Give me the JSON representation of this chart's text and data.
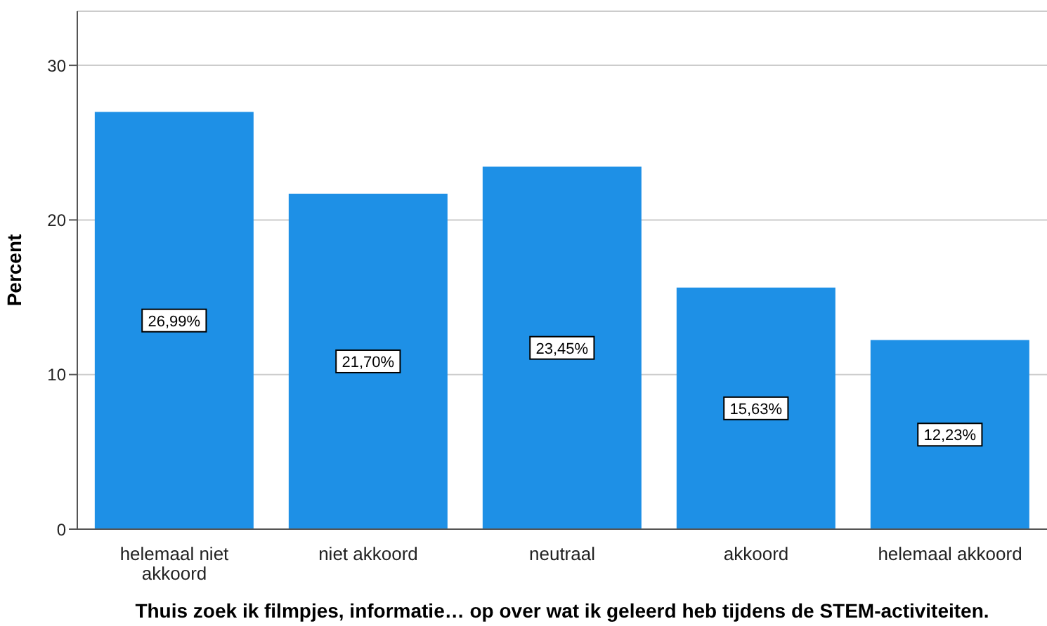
{
  "chart_data": {
    "type": "bar",
    "xlabel": "Thuis zoek ik filmpjes, informatie…  op over wat ik geleerd heb tijdens de STEM-activiteiten.",
    "ylabel": "Percent",
    "categories": [
      "helemaal niet akkoord",
      "niet akkoord",
      "neutraal",
      "akkoord",
      "helemaal akkoord"
    ],
    "values": [
      26.99,
      21.7,
      23.45,
      15.63,
      12.23
    ],
    "value_labels": [
      "26,99%",
      "21,70%",
      "23,45%",
      "15,63%",
      "12,23%"
    ],
    "color": "#1e90e6",
    "ylim": [
      0,
      33.5
    ],
    "yticks": [
      0,
      10,
      20,
      30
    ],
    "grid": "y"
  }
}
